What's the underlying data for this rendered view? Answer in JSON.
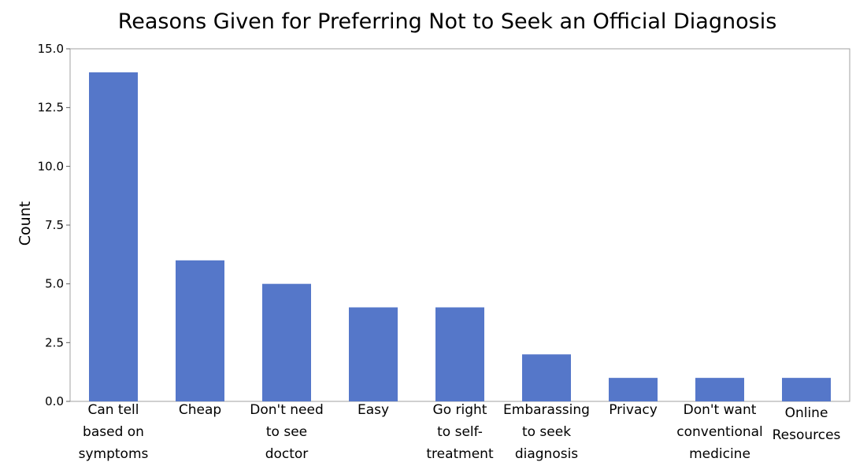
{
  "chart_data": {
    "type": "bar",
    "title": "Reasons Given for Preferring Not to Seek an Official Diagnosis",
    "xlabel": "",
    "ylabel": "Count",
    "ylim": [
      0,
      15
    ],
    "yticks": [
      "0.0",
      "2.5",
      "5.0",
      "7.5",
      "10.0",
      "12.5",
      "15.0"
    ],
    "grid": false,
    "bar_color": "#5577c9",
    "categories": [
      [
        "Can tell",
        "based on",
        "symptoms"
      ],
      [
        "Cheap"
      ],
      [
        "Don't need",
        "to see",
        "doctor"
      ],
      [
        "Easy"
      ],
      [
        "Go right",
        "to self-",
        "treatment"
      ],
      [
        "Embarassing",
        "to seek",
        "diagnosis"
      ],
      [
        "Privacy"
      ],
      [
        "Don't want",
        "conventional",
        "medicine"
      ],
      [
        "Online",
        "Resources"
      ]
    ],
    "values": [
      14,
      6,
      5,
      4,
      4,
      2,
      1,
      1,
      1
    ]
  }
}
